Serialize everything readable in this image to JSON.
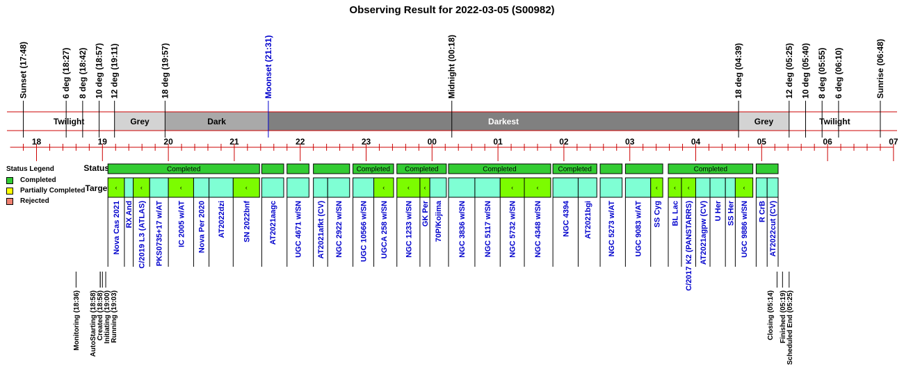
{
  "chart_data": {
    "type": "timeline",
    "title": "Observing Result for 2022-03-05 (S00982)",
    "row_labels": {
      "status": "Status",
      "targets": "Targets"
    },
    "twilight_events": [
      {
        "label": "Sunset (17:48)",
        "time": "17:48",
        "color": "#000000"
      },
      {
        "label": "6 deg (18:27)",
        "time": "18:27",
        "color": "#000000"
      },
      {
        "label": "8 deg (18:42)",
        "time": "18:42",
        "color": "#000000"
      },
      {
        "label": "10 deg (18:57)",
        "time": "18:57",
        "color": "#000000"
      },
      {
        "label": "12 deg (19:11)",
        "time": "19:11",
        "color": "#000000"
      },
      {
        "label": "18 deg (19:57)",
        "time": "19:57",
        "color": "#000000"
      },
      {
        "label": "Moonset (21:31)",
        "time": "21:31",
        "color": "#0000cc"
      },
      {
        "label": "Midnight (00:18)",
        "time": "24:18",
        "color": "#000000"
      },
      {
        "label": "18 deg (04:39)",
        "time": "28:39",
        "color": "#000000"
      },
      {
        "label": "12 deg (05:25)",
        "time": "29:25",
        "color": "#000000"
      },
      {
        "label": "10 deg (05:40)",
        "time": "29:40",
        "color": "#000000"
      },
      {
        "label": "8 deg (05:55)",
        "time": "29:55",
        "color": "#000000"
      },
      {
        "label": "6 deg (06:10)",
        "time": "30:10",
        "color": "#000000"
      },
      {
        "label": "Sunrise (06:48)",
        "time": "30:48",
        "color": "#000000"
      }
    ],
    "sky_phases": [
      {
        "label": "Twilight",
        "start": "17:48",
        "end": "19:11",
        "fill": "#ffffff",
        "text": "#000000"
      },
      {
        "label": "Grey",
        "start": "19:11",
        "end": "19:57",
        "fill": "#d3d3d3",
        "text": "#000000"
      },
      {
        "label": "Dark",
        "start": "19:57",
        "end": "21:31",
        "fill": "#a9a9a9",
        "text": "#000000"
      },
      {
        "label": "Darkest",
        "start": "21:31",
        "end": "28:39",
        "fill": "#808080",
        "text": "#ffffff"
      },
      {
        "label": "Grey",
        "start": "28:39",
        "end": "29:25",
        "fill": "#d3d3d3",
        "text": "#000000"
      },
      {
        "label": "Twilight",
        "start": "29:25",
        "end": "30:48",
        "fill": "#ffffff",
        "text": "#000000"
      }
    ],
    "hour_ticks": [
      "18",
      "19",
      "20",
      "21",
      "22",
      "23",
      "00",
      "01",
      "02",
      "03",
      "04",
      "05",
      "06",
      "07"
    ],
    "x_range": [
      "17:36",
      "31:00"
    ],
    "status_legend": {
      "title": "Status Legend",
      "items": [
        {
          "label": "Completed",
          "color": "#33cc33"
        },
        {
          "label": "Partially Completed",
          "color": "#ffff00"
        },
        {
          "label": "Rejected",
          "color": "#f08070"
        }
      ]
    },
    "status_blocks": [
      {
        "start": "19:05",
        "end": "21:23",
        "label": "Completed"
      },
      {
        "start": "21:25",
        "end": "21:45",
        "label": ""
      },
      {
        "start": "21:48",
        "end": "22:08",
        "label": ""
      },
      {
        "start": "22:12",
        "end": "22:45",
        "label": ""
      },
      {
        "start": "22:48",
        "end": "23:25",
        "label": "Completed"
      },
      {
        "start": "23:28",
        "end": "24:13",
        "label": "Completed"
      },
      {
        "start": "24:15",
        "end": "25:48",
        "label": "Completed"
      },
      {
        "start": "25:50",
        "end": "26:30",
        "label": "Completed"
      },
      {
        "start": "26:33",
        "end": "26:53",
        "label": ""
      },
      {
        "start": "26:56",
        "end": "27:30",
        "label": ""
      },
      {
        "start": "27:35",
        "end": "28:52",
        "label": "Completed"
      },
      {
        "start": "28:55",
        "end": "29:15",
        "label": ""
      }
    ],
    "targets": [
      {
        "name": "Nova Cas 2021",
        "start": "19:05",
        "end": "19:20",
        "flag": true
      },
      {
        "name": "RX And",
        "start": "19:20",
        "end": "19:28",
        "flag": false
      },
      {
        "name": "C/2019 L3 (ATLAS)",
        "start": "19:28",
        "end": "19:43",
        "flag": true
      },
      {
        "name": "PKS0735+17 w/AT",
        "start": "19:43",
        "end": "20:00",
        "flag": false
      },
      {
        "name": "IC 2005 w/AT",
        "start": "20:00",
        "end": "20:23",
        "flag": true
      },
      {
        "name": "Nova Per 2020",
        "start": "20:23",
        "end": "20:37",
        "flag": false
      },
      {
        "name": "AT2022dzi",
        "start": "20:37",
        "end": "20:59",
        "flag": false
      },
      {
        "name": "SN 2022bnf",
        "start": "20:59",
        "end": "21:23",
        "flag": true
      },
      {
        "name": "AT2021aagc",
        "start": "21:25",
        "end": "21:45",
        "flag": false
      },
      {
        "name": "UGC 4671 w/SN",
        "start": "21:48",
        "end": "22:08",
        "flag": false
      },
      {
        "name": "AT2021afkt (CV)",
        "start": "22:12",
        "end": "22:25",
        "flag": false
      },
      {
        "name": "NGC 2922 w/SN",
        "start": "22:25",
        "end": "22:45",
        "flag": false
      },
      {
        "name": "UGC 10566 w/SN",
        "start": "22:48",
        "end": "23:07",
        "flag": false
      },
      {
        "name": "UGCA 258 w/SN",
        "start": "23:07",
        "end": "23:25",
        "flag": true
      },
      {
        "name": "NGC 1233 w/SN",
        "start": "23:28",
        "end": "23:49",
        "flag": true
      },
      {
        "name": "GK Per",
        "start": "23:49",
        "end": "23:58",
        "flag": true
      },
      {
        "name": "70P/Kojima",
        "start": "23:58",
        "end": "24:13",
        "flag": false
      },
      {
        "name": "NGC 3836 w/SN",
        "start": "24:15",
        "end": "24:39",
        "flag": false
      },
      {
        "name": "NGC 5117 w/SN",
        "start": "24:39",
        "end": "25:02",
        "flag": false
      },
      {
        "name": "NGC 5732 w/SN",
        "start": "25:02",
        "end": "25:24",
        "flag": true
      },
      {
        "name": "NGC 4348 w/SN",
        "start": "25:24",
        "end": "25:48",
        "flag": true
      },
      {
        "name": "NGC 4394",
        "start": "25:50",
        "end": "26:13",
        "flag": false
      },
      {
        "name": "AT2021bgi",
        "start": "26:13",
        "end": "26:30",
        "flag": false
      },
      {
        "name": "NGC 5273 w/AT",
        "start": "26:33",
        "end": "26:53",
        "flag": false
      },
      {
        "name": "UGC 9083 w/AT",
        "start": "26:56",
        "end": "27:19",
        "flag": false
      },
      {
        "name": "SS Cyg",
        "start": "27:19",
        "end": "27:30",
        "flag": true
      },
      {
        "name": "BL Lac",
        "start": "27:35",
        "end": "27:47",
        "flag": true
      },
      {
        "name": "C/2017 K2 (PANSTARRS)",
        "start": "27:47",
        "end": "28:00",
        "flag": true
      },
      {
        "name": "AT2021agpw (CV)",
        "start": "28:00",
        "end": "28:13",
        "flag": false
      },
      {
        "name": "U Her",
        "start": "28:13",
        "end": "28:27",
        "flag": false
      },
      {
        "name": "SS Her",
        "start": "28:27",
        "end": "28:36",
        "flag": false
      },
      {
        "name": "UGC 9886 w/SN",
        "start": "28:36",
        "end": "28:52",
        "flag": true
      },
      {
        "name": "R CrB",
        "start": "28:55",
        "end": "29:05",
        "flag": false
      },
      {
        "name": "AT2022cut (CV)",
        "start": "29:05",
        "end": "29:15",
        "flag": false
      }
    ],
    "target_flag_symbol": "‹",
    "colors": {
      "target_fill": "#7fffd4",
      "target_flag_fill": "#7cfc00",
      "status_fill": "#33cc33",
      "target_text": "#0000cc",
      "band_line": "#cc0000"
    },
    "system_events": [
      {
        "label": "Monitoring (18:36)",
        "time": "18:36"
      },
      {
        "label": "AutoStarting (18:58)",
        "time": "18:58"
      },
      {
        "label": "Created (18:58)",
        "time": "18:58"
      },
      {
        "label": "Initiating (19:00)",
        "time": "19:00"
      },
      {
        "label": "Running (19:03)",
        "time": "19:03"
      },
      {
        "label": "Closing (05:14)",
        "time": "29:14"
      },
      {
        "label": "Finished (05:19)",
        "time": "29:19"
      },
      {
        "label": "Scheduled End (05:25)",
        "time": "29:25"
      }
    ]
  }
}
